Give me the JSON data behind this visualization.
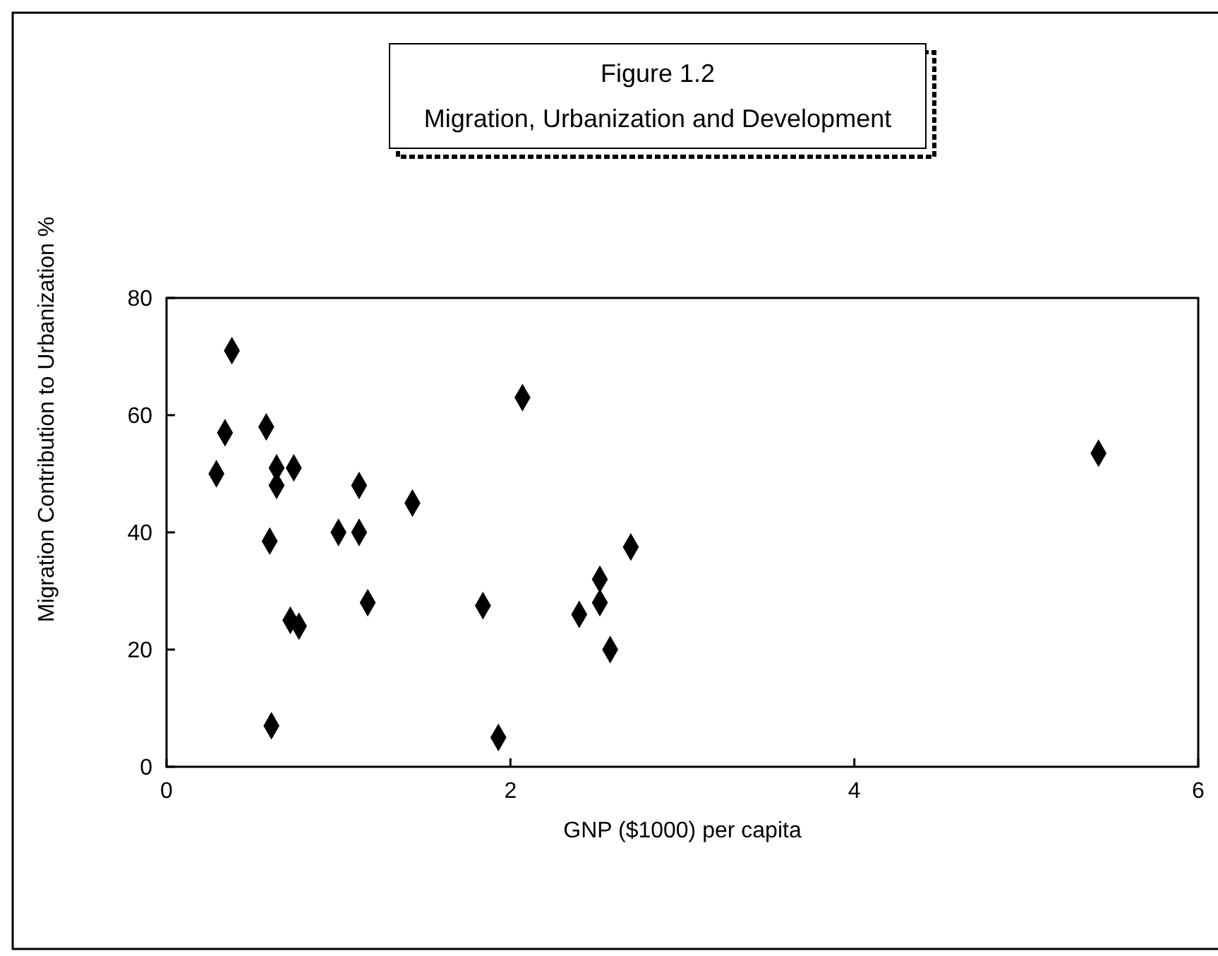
{
  "chart_data": {
    "type": "scatter",
    "title": "Figure 1.2",
    "subtitle": "Migration, Urbanization and Development",
    "xlabel": "GNP ($1000) per capita",
    "ylabel": "Migration Contribution to Urbanization %",
    "xlim": [
      0,
      6
    ],
    "xticks": [
      0,
      2,
      4,
      6
    ],
    "ylim": [
      0,
      80
    ],
    "yticks": [
      0,
      20,
      40,
      60,
      80
    ],
    "marker": "diamond",
    "series": [
      {
        "color": "#000000",
        "x": [
          0.38,
          0.34,
          0.58,
          0.29,
          0.64,
          0.74,
          0.64,
          1.12,
          1.43,
          1.0,
          1.12,
          0.6,
          1.17,
          1.84,
          0.72,
          0.77,
          0.61,
          1.93,
          2.07,
          2.7,
          2.52,
          2.52,
          2.4,
          2.58,
          5.42
        ],
        "values": [
          71,
          57,
          58,
          50,
          51,
          51,
          48,
          48,
          45,
          40,
          40,
          38.5,
          28,
          27.5,
          25,
          24,
          7,
          5,
          63,
          37.5,
          32,
          28,
          26,
          20,
          53.5
        ]
      }
    ]
  }
}
